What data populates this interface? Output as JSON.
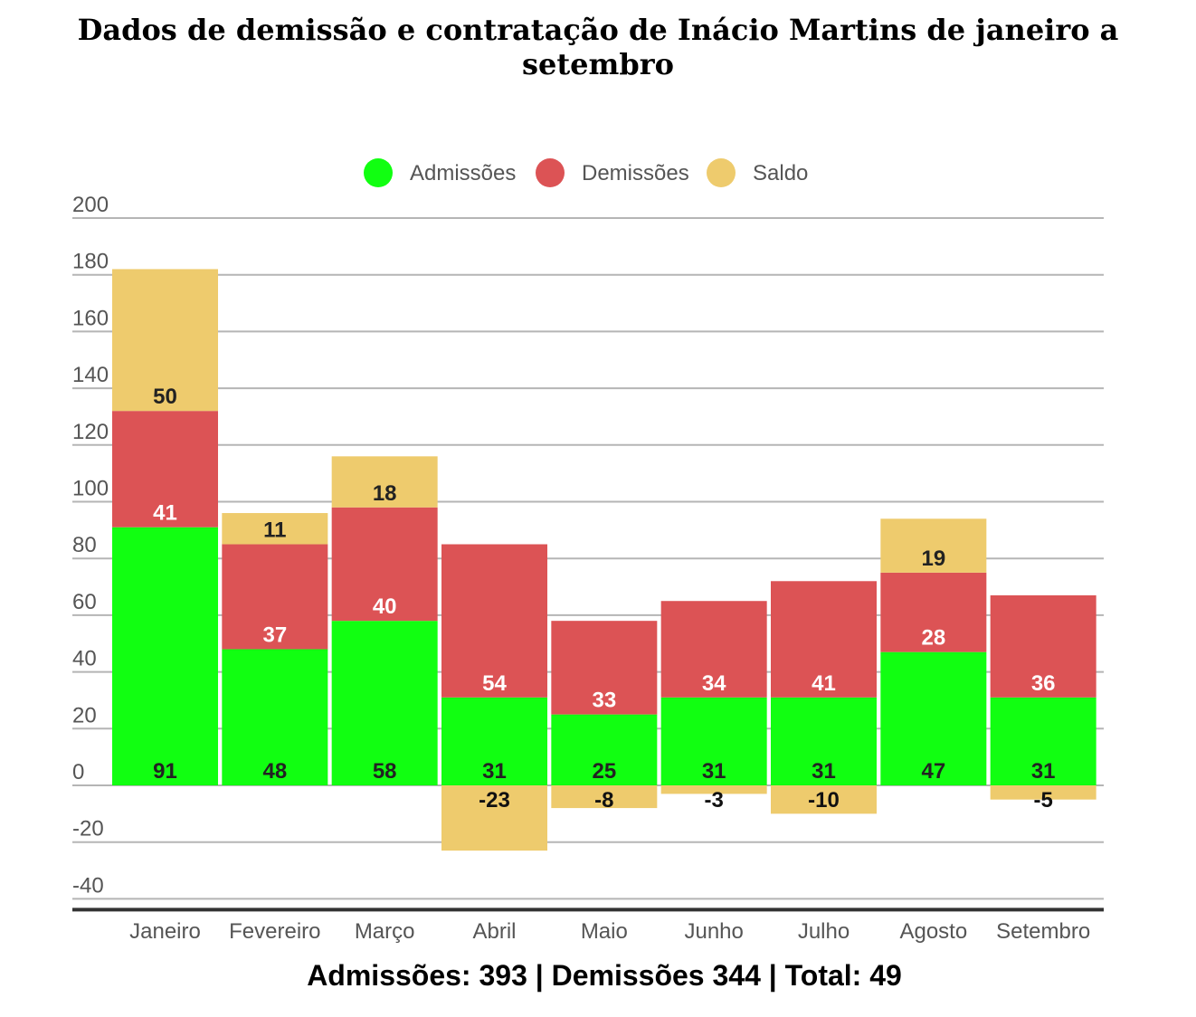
{
  "chart_data": {
    "type": "bar",
    "stacked": true,
    "title": "Dados de demissão e contratação de Inácio Martins de janeiro a setembro",
    "categories": [
      "Janeiro",
      "Fevereiro",
      "Março",
      "Abril",
      "Maio",
      "Junho",
      "Julho",
      "Agosto",
      "Setembro"
    ],
    "series": [
      {
        "name": "Admissões",
        "color": "#11ff11",
        "label_color": "#222222",
        "values": [
          91,
          48,
          58,
          31,
          25,
          31,
          31,
          47,
          31
        ]
      },
      {
        "name": "Demissões",
        "color": "#dc5355",
        "label_color": "#ffffff",
        "values": [
          41,
          37,
          40,
          54,
          33,
          34,
          41,
          28,
          36
        ]
      },
      {
        "name": "Saldo",
        "color": "#eecb6d",
        "label_color": "#222222",
        "values": [
          50,
          11,
          18,
          -23,
          -8,
          -3,
          -10,
          19,
          -5
        ]
      }
    ],
    "yticks": [
      200,
      180,
      160,
      140,
      120,
      100,
      80,
      60,
      40,
      20,
      0,
      -20,
      -40
    ],
    "ylim": [
      -40,
      200
    ],
    "legend_position": "top-center",
    "grid": true,
    "xlabel": "",
    "ylabel": ""
  },
  "footer": "Admissões: 393 | Demissões 344 | Total: 49"
}
